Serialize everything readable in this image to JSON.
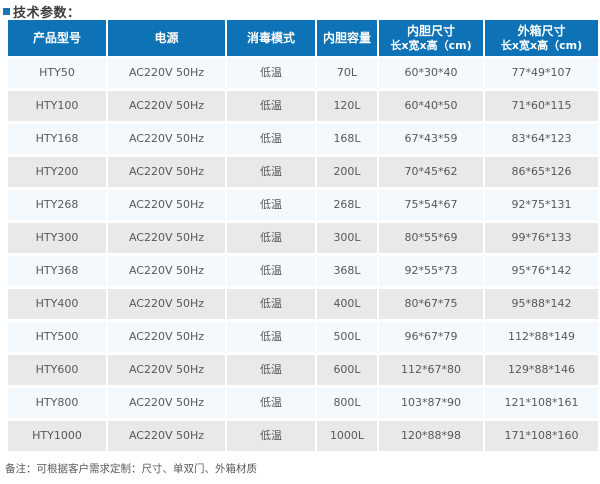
{
  "title": "技术参数：",
  "colors": {
    "header_bg": "#0e72b6",
    "row_light": "#f3f9fd",
    "row_gray": "#e9e9e9",
    "accent_bullet": "#1576b8",
    "header_text": "#ffffff",
    "body_text": "#595959"
  },
  "table": {
    "columns": [
      {
        "line1": "产品型号"
      },
      {
        "line1": "电源"
      },
      {
        "line1": "消毒模式"
      },
      {
        "line1": "内胆容量"
      },
      {
        "line1": "内胆尺寸",
        "line2": "长x宽x高（cm)"
      },
      {
        "line1": "外箱尺寸",
        "line2": "长x宽x高（cm)"
      }
    ],
    "rows": [
      [
        "HTY50",
        "AC220V 50Hz",
        "低温",
        "70L",
        "60*30*40",
        "77*49*107"
      ],
      [
        "HTY100",
        "AC220V 50Hz",
        "低温",
        "120L",
        "60*40*50",
        "71*60*115"
      ],
      [
        "HTY168",
        "AC220V 50Hz",
        "低温",
        "168L",
        "67*43*59",
        "83*64*123"
      ],
      [
        "HTY200",
        "AC220V 50Hz",
        "低温",
        "200L",
        "70*45*62",
        "86*65*126"
      ],
      [
        "HTY268",
        "AC220V 50Hz",
        "低温",
        "268L",
        "75*54*67",
        "92*75*131"
      ],
      [
        "HTY300",
        "AC220V 50Hz",
        "低温",
        "300L",
        "80*55*69",
        "99*76*133"
      ],
      [
        "HTY368",
        "AC220V 50Hz",
        "低温",
        "368L",
        "92*55*73",
        "95*76*142"
      ],
      [
        "HTY400",
        "AC220V 50Hz",
        "低温",
        "400L",
        "80*67*75",
        "95*88*142"
      ],
      [
        "HTY500",
        "AC220V 50Hz",
        "低温",
        "500L",
        "96*67*79",
        "112*88*149"
      ],
      [
        "HTY600",
        "AC220V 50Hz",
        "低温",
        "600L",
        "112*67*80",
        "129*88*146"
      ],
      [
        "HTY800",
        "AC220V 50Hz",
        "低温",
        "800L",
        "103*87*90",
        "121*108*161"
      ],
      [
        "HTY1000",
        "AC220V 50Hz",
        "低温",
        "1000L",
        "120*88*98",
        "171*108*160"
      ]
    ]
  },
  "note": "备注：可根据客户需求定制：尺寸、单双门、外箱材质"
}
